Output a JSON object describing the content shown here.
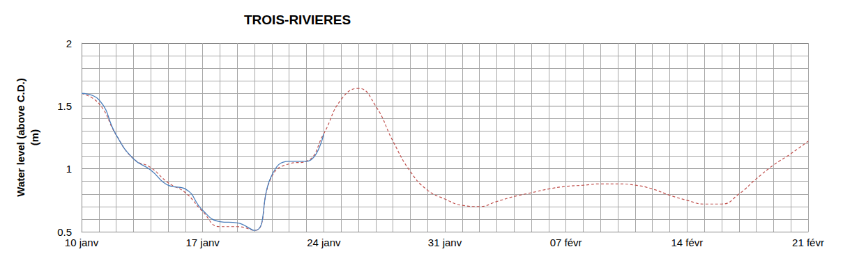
{
  "chart_data": {
    "type": "line",
    "title": "TROIS-RIVIERES",
    "y_label": "Water level (above C.D.)\n(m)",
    "categories": [
      "10 janv",
      null,
      null,
      null,
      null,
      null,
      null,
      "17 janv",
      null,
      null,
      null,
      null,
      null,
      null,
      "24 janv",
      null,
      null,
      null,
      null,
      null,
      null,
      "31 janv",
      null,
      null,
      null,
      null,
      null,
      null,
      "07 févr",
      null,
      null,
      null,
      null,
      null,
      null,
      "14 févr",
      null,
      null,
      null,
      null,
      null,
      null,
      "21 févr"
    ],
    "series": [
      {
        "color": "#c0504d",
        "line_style": "dashed",
        "marker": "none",
        "values": [
          1.6,
          1.52,
          1.27,
          1.08,
          1.01,
          0.89,
          0.81,
          0.66,
          0.54,
          0.54,
          0.51,
          0.94,
          1.04,
          1.06,
          1.28,
          1.55,
          1.64,
          1.5,
          1.22,
          0.98,
          0.83,
          0.76,
          0.71,
          0.7,
          0.74,
          0.78,
          0.81,
          0.84,
          0.86,
          0.87,
          0.88,
          0.88,
          0.87,
          0.84,
          0.79,
          0.75,
          0.72,
          0.72,
          0.8,
          0.92,
          1.03,
          1.12,
          1.22
        ]
      },
      {
        "color": "#4a7ebb",
        "line_style": "solid",
        "marker": "none",
        "values": [
          1.6,
          1.55,
          1.27,
          1.08,
          0.99,
          0.87,
          0.84,
          0.67,
          0.58,
          0.57,
          0.51,
          0.95,
          1.06,
          1.06,
          1.28,
          null,
          null,
          null,
          null,
          null,
          null,
          null,
          null,
          null,
          null,
          null,
          null,
          null,
          null,
          null,
          null,
          null,
          null,
          null,
          null,
          null,
          null,
          null,
          null,
          null,
          null,
          null,
          null
        ]
      }
    ],
    "ylim": [
      0.5,
      2
    ],
    "yticks": [
      0.5,
      1,
      1.5,
      2
    ],
    "grid": true
  }
}
